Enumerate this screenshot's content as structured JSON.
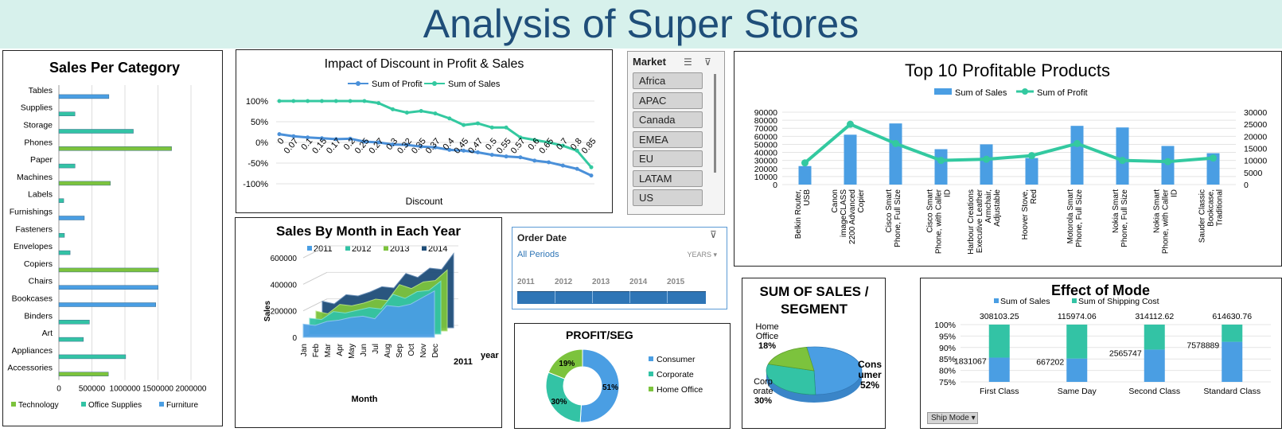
{
  "dashboard": {
    "title": "Analysis of Super Stores"
  },
  "colors": {
    "banner": "#d7f1ec",
    "title": "#1f4e79",
    "technology": "#7cc33d",
    "office_supplies": "#33c3a5",
    "furniture": "#4a9ee3",
    "profit_line": "#4a90d9",
    "sales_line": "#33c9a0"
  },
  "category_chart": {
    "title": "Sales Per Category",
    "categories": [
      "Tables",
      "Supplies",
      "Storage",
      "Phones",
      "Paper",
      "Machines",
      "Labels",
      "Furnishings",
      "Fasteners",
      "Envelopes",
      "Copiers",
      "Chairs",
      "Bookcases",
      "Binders",
      "Art",
      "Appliances",
      "Accessories"
    ],
    "x_ticks": [
      "0",
      "500000",
      "1000000",
      "1500000",
      "2000000"
    ],
    "legend": [
      "Technology",
      "Office Supplies",
      "Furniture"
    ]
  },
  "discount_chart": {
    "title": "Impact of Discount in Profit & Sales",
    "legend": [
      "Sum of Profit",
      "Sum of Sales"
    ],
    "y_ticks": [
      "100%",
      "50%",
      "0%",
      "-50%",
      "-100%"
    ],
    "x_ticks": [
      "0",
      "0.07",
      "0.1",
      "0.15",
      "0.17",
      "0.2",
      "0.25",
      "0.27",
      "0.3",
      "0.32",
      "0.35",
      "0.37",
      "0.4",
      "0.45",
      "0.47",
      "0.5",
      "0.55",
      "0.57",
      "0.6",
      "0.65",
      "0.7",
      "0.8",
      "0.85"
    ],
    "xlabel": "Discount"
  },
  "month_chart": {
    "title": "Sales By Month in Each Year",
    "legend": [
      "2011",
      "2012",
      "2013",
      "2014"
    ],
    "y_ticks": [
      "600000",
      "400000",
      "200000",
      "0"
    ],
    "months": [
      "Jan",
      "Feb",
      "Mar",
      "Apr",
      "May",
      "Jun",
      "Jul",
      "Aug",
      "Sep",
      "Oct",
      "Nov",
      "Dec"
    ],
    "ylabel": "Sales",
    "xlabel": "Month",
    "depth_label": "2011",
    "depth_axis": "year"
  },
  "market_slicer": {
    "title": "Market",
    "items": [
      "Africa",
      "APAC",
      "Canada",
      "EMEA",
      "EU",
      "LATAM",
      "US"
    ]
  },
  "order_timeline": {
    "title": "Order Date",
    "period": "All Periods",
    "unit": "YEARS",
    "years": [
      "2011",
      "2012",
      "2013",
      "2014",
      "2015"
    ]
  },
  "profit_seg": {
    "title": "PROFIT/SEG",
    "labels": [
      "51%",
      "30%",
      "19%"
    ],
    "legend": [
      "Consumer",
      "Corporate",
      "Home Office"
    ]
  },
  "top10_chart": {
    "title": "Top 10 Profitable Products",
    "legend": [
      "Sum of Sales",
      "Sum of Profit"
    ],
    "y_left": [
      "90000",
      "80000",
      "70000",
      "60000",
      "50000",
      "40000",
      "30000",
      "20000",
      "10000",
      "0"
    ],
    "y_right": [
      "30000",
      "25000",
      "20000",
      "15000",
      "10000",
      "5000",
      "0"
    ],
    "products": [
      [
        "Belkin Router,",
        "USB"
      ],
      [
        "Canon",
        "imageCLASS",
        "2200 Advanced",
        "Copier"
      ],
      [
        "Cisco Smart",
        "Phone, Full Size"
      ],
      [
        "Cisco Smart",
        "Phone, with Caller",
        "ID"
      ],
      [
        "Harbour Creations",
        "Executive Leather",
        "Armchair,",
        "Adjustable"
      ],
      [
        "Hoover Stove,",
        "Red"
      ],
      [
        "Motorola Smart",
        "Phone, Full Size"
      ],
      [
        "Nokia Smart",
        "Phone, Full Size"
      ],
      [
        "Nokia Smart",
        "Phone, with Caller",
        "ID"
      ],
      [
        "Sauder Classic",
        "Bookcase,",
        "Traditional"
      ]
    ]
  },
  "segment_pie": {
    "title_lines": [
      "SUM OF SALES /",
      "SEGMENT"
    ],
    "labels": {
      "home": [
        "Home",
        "Office",
        "18%"
      ],
      "corp": [
        "Corp",
        "orate",
        "30%"
      ],
      "cons": [
        "Cons",
        "umer",
        "52%"
      ]
    }
  },
  "mode_chart": {
    "title": "Effect of Mode",
    "legend": [
      "Sum of Sales",
      "Sum of Shipping Cost"
    ],
    "y_ticks": [
      "100%",
      "95%",
      "90%",
      "85%",
      "80%",
      "75%"
    ],
    "categories": [
      "First Class",
      "Same Day",
      "Second Class",
      "Standard Class"
    ],
    "shipping_labels": [
      "308103.25",
      "115974.06",
      "314112.62",
      "614630.76"
    ],
    "sales_labels": [
      "1831067",
      "667202",
      "2565747",
      "7578889"
    ],
    "filter_button": "Ship Mode"
  },
  "chart_data": [
    {
      "type": "bar",
      "title": "Sales Per Category",
      "categories": [
        "Tables",
        "Supplies",
        "Storage",
        "Phones",
        "Paper",
        "Machines",
        "Labels",
        "Furnishings",
        "Fasteners",
        "Envelopes",
        "Copiers",
        "Chairs",
        "Bookcases",
        "Binders",
        "Art",
        "Appliances",
        "Accessories"
      ],
      "series_group": [
        "Furniture",
        "Office Supplies",
        "Office Supplies",
        "Technology",
        "Office Supplies",
        "Technology",
        "Office Supplies",
        "Furniture",
        "Office Supplies",
        "Office Supplies",
        "Technology",
        "Furniture",
        "Furniture",
        "Office Supplies",
        "Office Supplies",
        "Office Supplies",
        "Technology"
      ],
      "values": [
        757000,
        243000,
        1127000,
        1706000,
        244000,
        779000,
        73000,
        385000,
        84000,
        170000,
        1509000,
        1502000,
        1467000,
        462000,
        371000,
        1011000,
        749000
      ],
      "xlim": [
        0,
        2000000
      ]
    },
    {
      "type": "line",
      "title": "Impact of Discount in Profit & Sales",
      "x": [
        "0",
        "0.07",
        "0.1",
        "0.15",
        "0.17",
        "0.2",
        "0.25",
        "0.27",
        "0.3",
        "0.32",
        "0.35",
        "0.37",
        "0.4",
        "0.45",
        "0.47",
        "0.5",
        "0.55",
        "0.57",
        "0.6",
        "0.65",
        "0.7",
        "0.8",
        "0.85"
      ],
      "series": [
        {
          "name": "Sum of Profit",
          "values": [
            0.2,
            0.15,
            0.12,
            0.1,
            0.08,
            0.09,
            0.02,
            0.0,
            -0.05,
            -0.06,
            -0.1,
            -0.12,
            -0.18,
            -0.2,
            -0.24,
            -0.3,
            -0.34,
            -0.36,
            -0.44,
            -0.48,
            -0.56,
            -0.64,
            -0.8
          ]
        },
        {
          "name": "Sum of Sales",
          "values": [
            1.0,
            1.0,
            1.0,
            1.0,
            1.0,
            1.0,
            1.0,
            0.95,
            0.8,
            0.72,
            0.76,
            0.7,
            0.58,
            0.42,
            0.46,
            0.36,
            0.36,
            0.12,
            0.06,
            0.0,
            -0.08,
            -0.2,
            -0.6
          ]
        }
      ],
      "ylim": [
        -1,
        1
      ]
    },
    {
      "type": "area",
      "title": "Sales By Month in Each Year",
      "categories": [
        "Jan",
        "Feb",
        "Mar",
        "Apr",
        "May",
        "Jun",
        "Jul",
        "Aug",
        "Sep",
        "Oct",
        "Nov",
        "Dec"
      ],
      "series": [
        {
          "name": "2011",
          "values": [
            100000,
            90000,
            120000,
            130000,
            150000,
            160000,
            140000,
            240000,
            230000,
            250000,
            300000,
            350000
          ]
        },
        {
          "name": "2012",
          "values": [
            120000,
            110000,
            170000,
            160000,
            180000,
            200000,
            190000,
            300000,
            270000,
            320000,
            330000,
            400000
          ]
        },
        {
          "name": "2013",
          "values": [
            150000,
            130000,
            200000,
            190000,
            210000,
            240000,
            230000,
            350000,
            320000,
            370000,
            380000,
            460000
          ]
        },
        {
          "name": "2014",
          "values": [
            200000,
            180000,
            250000,
            240000,
            270000,
            310000,
            300000,
            410000,
            380000,
            450000,
            440000,
            560000
          ]
        }
      ],
      "ylim": [
        0,
        600000
      ]
    },
    {
      "type": "pie",
      "title": "PROFIT/SEG",
      "labels": [
        "Consumer",
        "Corporate",
        "Home Office"
      ],
      "values": [
        51,
        30,
        19
      ]
    },
    {
      "type": "bar",
      "title": "Top 10 Profitable Products",
      "categories": [
        "Belkin Router, USB",
        "Canon imageCLASS 2200 Advanced Copier",
        "Cisco Smart Phone, Full Size",
        "Cisco Smart Phone, with Caller ID",
        "Harbour Creations Executive Leather Armchair, Adjustable",
        "Hoover Stove, Red",
        "Motorola Smart Phone, Full Size",
        "Nokia Smart Phone, Full Size",
        "Nokia Smart Phone, with Caller ID",
        "Sauder Classic Bookcase, Traditional"
      ],
      "series": [
        {
          "name": "Sum of Sales",
          "axis": "left",
          "values": [
            23000,
            62000,
            76000,
            44000,
            50000,
            33000,
            73000,
            71000,
            48000,
            39000
          ]
        },
        {
          "name": "Sum of Profit",
          "axis": "right",
          "values": [
            9000,
            25000,
            17000,
            10000,
            10500,
            12000,
            17000,
            10000,
            9500,
            11000
          ]
        }
      ],
      "ylim_left": [
        0,
        90000
      ],
      "ylim_right": [
        0,
        30000
      ]
    },
    {
      "type": "pie",
      "title": "SUM OF SALES / SEGMENT",
      "labels": [
        "Consumer",
        "Corporate",
        "Home Office"
      ],
      "values": [
        52,
        30,
        18
      ]
    },
    {
      "type": "bar",
      "title": "Effect of Mode",
      "categories": [
        "First Class",
        "Same Day",
        "Second Class",
        "Standard Class"
      ],
      "series": [
        {
          "name": "Sum of Sales",
          "values": [
            1831067,
            667202,
            2565747,
            7578889
          ]
        },
        {
          "name": "Sum of Shipping Cost",
          "values": [
            308103.25,
            115974.06,
            314112.62,
            614630.76
          ]
        }
      ],
      "ylim": [
        0.75,
        1.0
      ]
    }
  ]
}
